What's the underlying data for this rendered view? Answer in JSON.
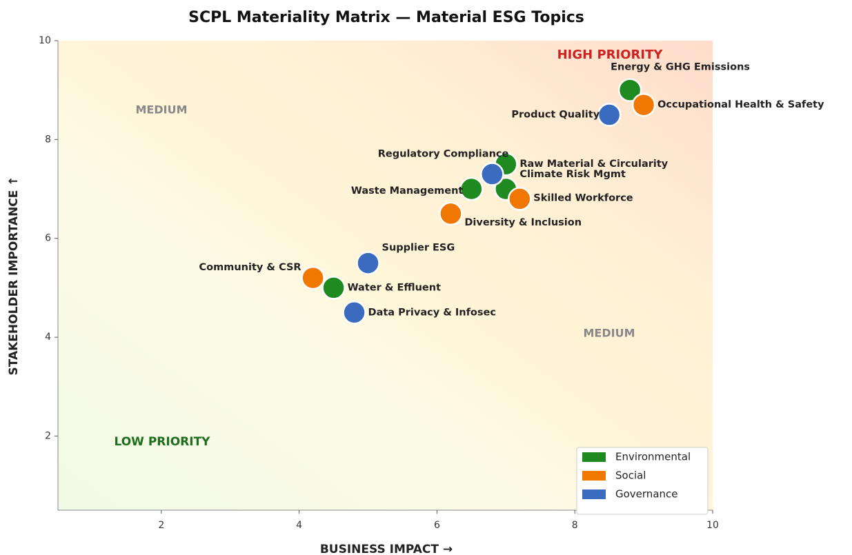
{
  "chart_data": {
    "type": "scatter",
    "title": "SCPL Materiality Matrix — Material ESG Topics",
    "x_label": "BUSINESS IMPACT →",
    "y_label": "STAKEHOLDER IMPORTANCE ↑",
    "xlim": [
      0.5,
      10
    ],
    "ylim": [
      0.5,
      10
    ],
    "xticks": [
      2,
      4,
      6,
      8,
      10
    ],
    "yticks": [
      2,
      4,
      6,
      8,
      10
    ],
    "legend": "lower right",
    "annotations": [
      "HIGH PRIORITY",
      "MEDIUM",
      "MEDIUM",
      "LOW PRIORITY"
    ],
    "series": [
      {
        "name": "Environmental",
        "color": "#1f8a1f",
        "labels": [
          "Energy & GHG Emissions",
          "Raw Material & Circularity",
          "Climate Risk Mgmt",
          "Waste Management",
          "Water & Effluent"
        ],
        "x": [
          8.8,
          7.0,
          7.0,
          6.5,
          4.5
        ],
        "y": [
          9.0,
          7.5,
          7.0,
          7.0,
          5.0
        ]
      },
      {
        "name": "Social",
        "color": "#f07800",
        "labels": [
          "Occupational Health & Safety",
          "Skilled Workforce",
          "Diversity & Inclusion",
          "Community & CSR"
        ],
        "x": [
          9.0,
          7.2,
          6.2,
          4.2
        ],
        "y": [
          8.7,
          6.8,
          6.5,
          5.2
        ]
      },
      {
        "name": "Governance",
        "color": "#3a6bbf",
        "labels": [
          "Product Quality",
          "Regulatory Compliance",
          "Supplier ESG",
          "Data Privacy & Infosec"
        ],
        "x": [
          8.5,
          6.8,
          5.0,
          4.8
        ],
        "y": [
          8.5,
          7.3,
          5.5,
          4.5
        ]
      }
    ]
  }
}
